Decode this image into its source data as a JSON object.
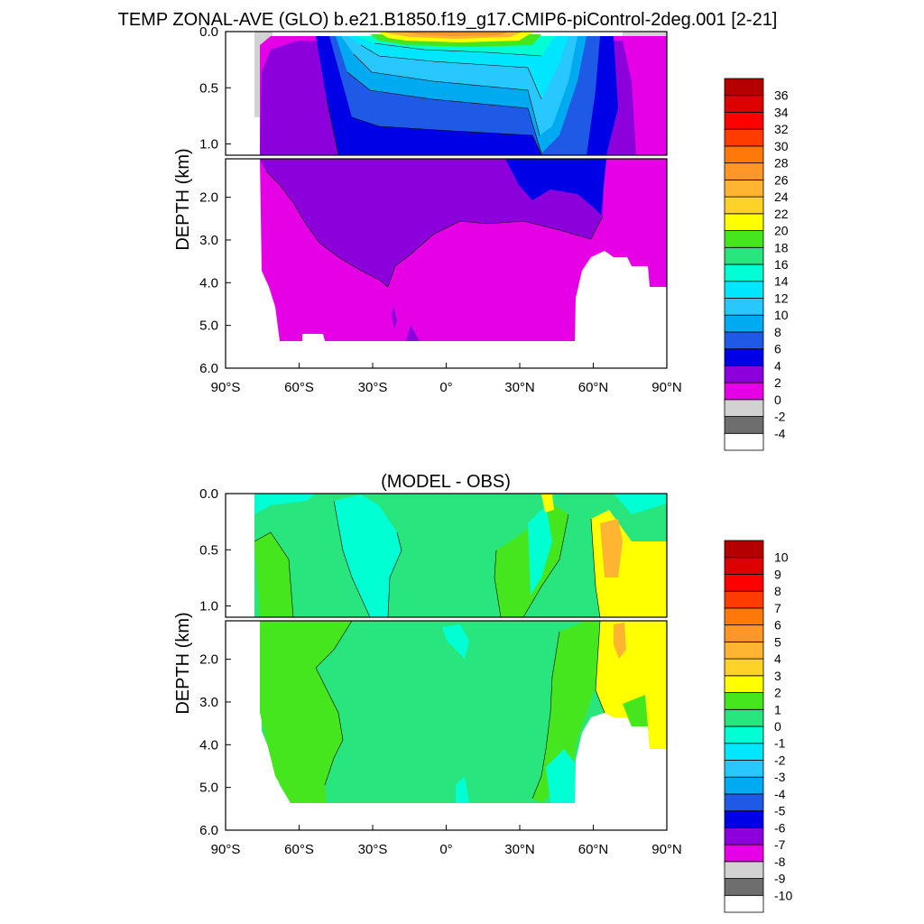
{
  "chart_data": [
    {
      "type": "heatmap",
      "title": "TEMP ZONAL-AVE (GLO) b.e21.B1850.f19_g17.CMIP6-piControl-2deg.001 [2-21]",
      "ylabel": "DEPTH (km)",
      "x_ticks": [
        "90°S",
        "60°S",
        "30°S",
        "0°",
        "30°N",
        "60°N",
        "90°N"
      ],
      "y_ticks_upper": [
        "0.0",
        "0.5",
        "1.0"
      ],
      "y_ticks_lower": [
        "2.0",
        "3.0",
        "4.0",
        "5.0",
        "6.0"
      ],
      "xlim": [
        -90,
        90
      ],
      "ylim_upper": [
        0,
        1.1
      ],
      "ylim_lower": [
        1.1,
        6.0
      ],
      "colorbar": {
        "labels": [
          "-4",
          "-2",
          "0",
          "2",
          "4",
          "6",
          "8",
          "10",
          "12",
          "14",
          "16",
          "18",
          "20",
          "22",
          "24",
          "26",
          "28",
          "30",
          "32",
          "34",
          "36"
        ],
        "colors": [
          "#ffffff",
          "#6e6e6e",
          "#d2d2d2",
          "#e600e6",
          "#8c00dc",
          "#0000e6",
          "#1e5ae6",
          "#00aaf0",
          "#28c8ff",
          "#00e6ff",
          "#00ffd2",
          "#28e67d",
          "#46e61e",
          "#ffff00",
          "#ffd228",
          "#ffb432",
          "#ff9628",
          "#ff780a",
          "#ff3c00",
          "#ff0000",
          "#dc0000",
          "#b40000"
        ]
      }
    },
    {
      "type": "heatmap",
      "title": "(MODEL - OBS)",
      "ylabel": "DEPTH (km)",
      "x_ticks": [
        "90°S",
        "60°S",
        "30°S",
        "0°",
        "30°N",
        "60°N",
        "90°N"
      ],
      "y_ticks_upper": [
        "0.0",
        "0.5",
        "1.0"
      ],
      "y_ticks_lower": [
        "2.0",
        "3.0",
        "4.0",
        "5.0",
        "6.0"
      ],
      "xlim": [
        -90,
        90
      ],
      "ylim_upper": [
        0,
        1.1
      ],
      "ylim_lower": [
        1.1,
        6.0
      ],
      "colorbar": {
        "labels": [
          "-10",
          "-9",
          "-8",
          "-7",
          "-6",
          "-5",
          "-4",
          "-3",
          "-2",
          "-1",
          "0",
          "1",
          "2",
          "3",
          "4",
          "5",
          "6",
          "7",
          "8",
          "9",
          "10"
        ],
        "colors": [
          "#ffffff",
          "#6e6e6e",
          "#d2d2d2",
          "#e600e6",
          "#8c00dc",
          "#0000e6",
          "#1e5ae6",
          "#00aaf0",
          "#28c8ff",
          "#00e6ff",
          "#00ffd2",
          "#28e67d",
          "#46e61e",
          "#ffff00",
          "#ffd228",
          "#ffb432",
          "#ff9628",
          "#ff780a",
          "#ff3c00",
          "#ff0000",
          "#dc0000",
          "#b40000"
        ]
      }
    }
  ]
}
